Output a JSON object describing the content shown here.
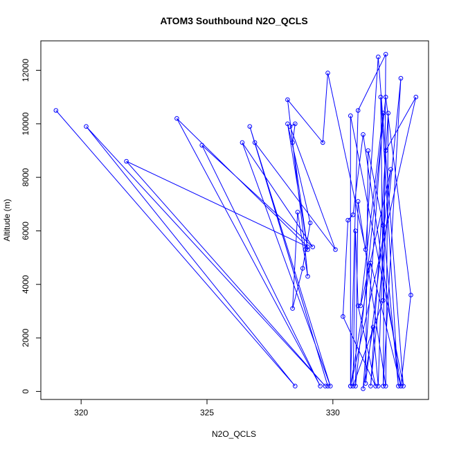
{
  "chart_data": {
    "type": "scatter",
    "title": "ATOM3 Southbound N2O_QCLS",
    "xlabel": "N2O_QCLS",
    "ylabel": "Altitude (m)",
    "xlim": [
      318.4,
      333.8
    ],
    "ylim": [
      -300,
      13100
    ],
    "xticks": [
      320,
      325,
      330
    ],
    "yticks": [
      0,
      2000,
      4000,
      6000,
      8000,
      10000,
      12000
    ],
    "grid": false,
    "legend": "none",
    "colors": {
      "series": "#0000ff",
      "text": "#000000",
      "frame": "#000000"
    },
    "series": [
      {
        "mode": "lines+markers",
        "x": [
          319.0,
          328.5,
          320.2,
          329.7,
          321.8,
          329.0,
          323.8,
          329.5,
          324.8,
          329.2,
          326.4,
          329.9,
          326.7,
          329.8,
          326.9,
          330.1,
          328.3,
          328.5,
          328.4,
          329.0,
          328.2,
          329.1,
          328.8,
          328.4,
          328.6,
          329.0,
          328.9,
          328.2,
          329.6,
          329.8,
          331.3,
          331.8,
          332.8,
          330.7,
          330.7,
          331.0,
          332.1,
          332.0,
          332.7,
          331.5,
          332.2,
          332.1,
          331.0,
          330.9,
          332.1,
          333.1,
          332.7,
          331.2,
          330.8,
          330.6,
          330.4,
          331.7,
          331.0,
          330.9,
          330.8,
          332.0,
          331.9,
          332.6,
          332.0,
          331.4,
          331.3,
          332.3,
          331.1,
          332.0,
          331.2,
          331.6,
          331.8,
          332.1,
          333.3,
          330.7,
          331.5,
          332.7
        ],
        "y": [
          10500,
          200,
          9900,
          200,
          8600,
          5400,
          10200,
          200,
          9200,
          5400,
          9300,
          200,
          9900,
          200,
          9300,
          5300,
          9900,
          10000,
          9300,
          5300,
          10000,
          6300,
          4600,
          3100,
          6700,
          4300,
          5300,
          10900,
          9300,
          11900,
          5300,
          12500,
          200,
          10300,
          200,
          10500,
          12600,
          200,
          11700,
          200,
          10400,
          200,
          7100,
          200,
          11000,
          3600,
          200,
          9600,
          6600,
          6400,
          2800,
          200,
          3200,
          6000,
          200,
          3400,
          11000,
          200,
          6200,
          9000,
          300,
          8300,
          3200,
          10400,
          100,
          2400,
          200,
          9000,
          11000,
          200,
          4800,
          200
        ]
      }
    ]
  }
}
